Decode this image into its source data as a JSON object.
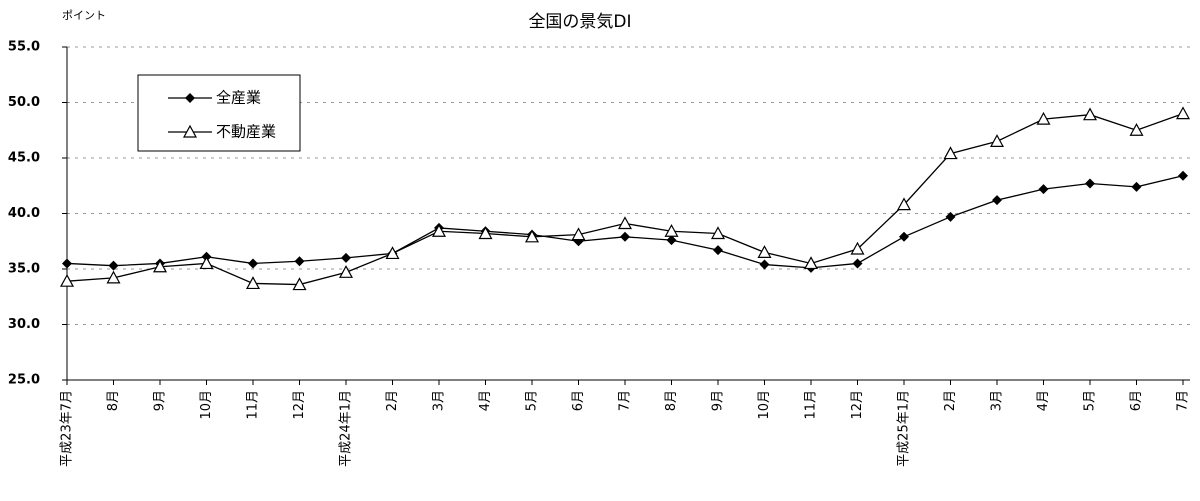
{
  "chart_data": {
    "type": "line",
    "title": "全国の景気DI",
    "y_label": "ポイント",
    "categories": [
      "平成23年7月",
      "8月",
      "9月",
      "10月",
      "11月",
      "12月",
      "平成24年1月",
      "2月",
      "3月",
      "4月",
      "5月",
      "6月",
      "7月",
      "8月",
      "9月",
      "10月",
      "11月",
      "12月",
      "平成25年1月",
      "2月",
      "3月",
      "4月",
      "5月",
      "6月",
      "7月"
    ],
    "series": [
      {
        "name": "全産業",
        "color": "#000000",
        "marker": "diamond",
        "values": [
          35.5,
          35.3,
          35.5,
          36.1,
          35.5,
          35.7,
          36.0,
          36.4,
          38.7,
          38.4,
          38.1,
          37.5,
          37.9,
          37.6,
          36.7,
          35.4,
          35.1,
          35.5,
          37.9,
          39.7,
          41.2,
          42.2,
          42.7,
          42.4,
          43.4
        ]
      },
      {
        "name": "不動産業",
        "color": "#000000",
        "marker": "triangle",
        "values": [
          33.9,
          34.2,
          35.2,
          35.5,
          33.7,
          33.6,
          34.7,
          36.4,
          38.4,
          38.2,
          37.9,
          38.1,
          39.1,
          38.4,
          38.2,
          36.5,
          35.5,
          36.8,
          40.8,
          45.4,
          46.5,
          48.5,
          48.9,
          47.5,
          49.0
        ]
      }
    ],
    "ylim": [
      25,
      55
    ],
    "yticks": [
      {
        "value": 25,
        "label": "25.0"
      },
      {
        "value": 30,
        "label": "30.0"
      },
      {
        "value": 35,
        "label": "35.0"
      },
      {
        "value": 40,
        "label": "40.0"
      },
      {
        "value": 45,
        "label": "45.0"
      },
      {
        "value": 50,
        "label": "50.0"
      },
      {
        "value": 55,
        "label": "55.0"
      }
    ],
    "grid": true,
    "legend": "upper left"
  }
}
